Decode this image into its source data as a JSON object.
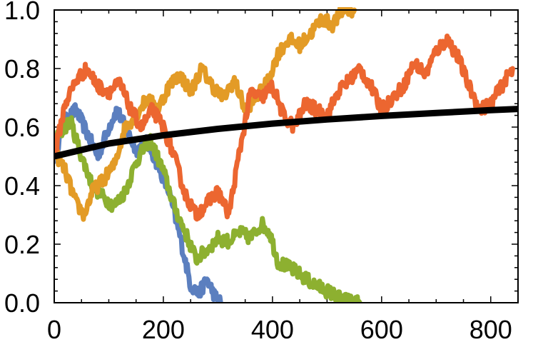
{
  "chart_data": {
    "type": "line",
    "title": "",
    "xlabel": "",
    "ylabel": "",
    "xlim": [
      0,
      850
    ],
    "ylim": [
      0,
      1.0
    ],
    "grid": false,
    "legend": "none",
    "x_ticks": [
      {
        "value": 0,
        "label": "0"
      },
      {
        "value": 200,
        "label": "200"
      },
      {
        "value": 400,
        "label": "400"
      },
      {
        "value": 600,
        "label": "600"
      },
      {
        "value": 800,
        "label": "800"
      }
    ],
    "y_ticks": [
      {
        "value": 0.0,
        "label": "0.0"
      },
      {
        "value": 0.2,
        "label": "0.2"
      },
      {
        "value": 0.4,
        "label": "0.4"
      },
      {
        "value": 0.6,
        "label": "0.6"
      },
      {
        "value": 0.8,
        "label": "0.8"
      },
      {
        "value": 1.0,
        "label": "1.0"
      }
    ],
    "series": [
      {
        "color": "#5b7fbf",
        "style": "noisy",
        "points": [
          [
            0,
            0.5
          ],
          [
            20,
            0.62
          ],
          [
            40,
            0.66
          ],
          [
            60,
            0.58
          ],
          [
            80,
            0.5
          ],
          [
            100,
            0.6
          ],
          [
            115,
            0.66
          ],
          [
            130,
            0.6
          ],
          [
            150,
            0.52
          ],
          [
            170,
            0.55
          ],
          [
            190,
            0.47
          ],
          [
            210,
            0.38
          ],
          [
            230,
            0.23
          ],
          [
            250,
            0.06
          ],
          [
            265,
            0.03
          ],
          [
            280,
            0.08
          ],
          [
            295,
            0.02
          ],
          [
            305,
            0.0
          ]
        ]
      },
      {
        "color": "#8db030",
        "style": "noisy",
        "points": [
          [
            0,
            0.55
          ],
          [
            20,
            0.6
          ],
          [
            30,
            0.62
          ],
          [
            50,
            0.5
          ],
          [
            70,
            0.4
          ],
          [
            90,
            0.36
          ],
          [
            110,
            0.33
          ],
          [
            130,
            0.38
          ],
          [
            150,
            0.48
          ],
          [
            175,
            0.56
          ],
          [
            200,
            0.45
          ],
          [
            220,
            0.33
          ],
          [
            240,
            0.24
          ],
          [
            260,
            0.15
          ],
          [
            280,
            0.18
          ],
          [
            300,
            0.22
          ],
          [
            320,
            0.21
          ],
          [
            340,
            0.24
          ],
          [
            360,
            0.22
          ],
          [
            380,
            0.27
          ],
          [
            395,
            0.24
          ],
          [
            410,
            0.14
          ],
          [
            440,
            0.11
          ],
          [
            470,
            0.07
          ],
          [
            500,
            0.04
          ],
          [
            530,
            0.01
          ],
          [
            560,
            0.0
          ]
        ]
      },
      {
        "color": "#e39b26",
        "style": "noisy",
        "points": [
          [
            0,
            0.52
          ],
          [
            20,
            0.45
          ],
          [
            40,
            0.34
          ],
          [
            55,
            0.3
          ],
          [
            70,
            0.38
          ],
          [
            90,
            0.42
          ],
          [
            110,
            0.47
          ],
          [
            130,
            0.6
          ],
          [
            150,
            0.64
          ],
          [
            170,
            0.7
          ],
          [
            190,
            0.66
          ],
          [
            210,
            0.74
          ],
          [
            230,
            0.78
          ],
          [
            250,
            0.72
          ],
          [
            270,
            0.8
          ],
          [
            290,
            0.74
          ],
          [
            310,
            0.7
          ],
          [
            330,
            0.76
          ],
          [
            350,
            0.66
          ],
          [
            370,
            0.7
          ],
          [
            390,
            0.75
          ],
          [
            410,
            0.85
          ],
          [
            430,
            0.9
          ],
          [
            450,
            0.88
          ],
          [
            470,
            0.92
          ],
          [
            490,
            0.97
          ],
          [
            510,
            0.95
          ],
          [
            530,
            1.0
          ],
          [
            550,
            1.0
          ]
        ]
      },
      {
        "color": "#ec6630",
        "style": "noisy",
        "points": [
          [
            0,
            0.5
          ],
          [
            20,
            0.68
          ],
          [
            40,
            0.76
          ],
          [
            60,
            0.8
          ],
          [
            80,
            0.74
          ],
          [
            100,
            0.72
          ],
          [
            120,
            0.75
          ],
          [
            140,
            0.66
          ],
          [
            160,
            0.6
          ],
          [
            180,
            0.66
          ],
          [
            200,
            0.6
          ],
          [
            220,
            0.5
          ],
          [
            240,
            0.37
          ],
          [
            260,
            0.3
          ],
          [
            280,
            0.34
          ],
          [
            300,
            0.38
          ],
          [
            320,
            0.3
          ],
          [
            340,
            0.52
          ],
          [
            360,
            0.72
          ],
          [
            380,
            0.7
          ],
          [
            400,
            0.74
          ],
          [
            420,
            0.64
          ],
          [
            440,
            0.6
          ],
          [
            460,
            0.68
          ],
          [
            480,
            0.66
          ],
          [
            500,
            0.64
          ],
          [
            520,
            0.72
          ],
          [
            540,
            0.76
          ],
          [
            560,
            0.8
          ],
          [
            580,
            0.74
          ],
          [
            600,
            0.66
          ],
          [
            620,
            0.7
          ],
          [
            640,
            0.74
          ],
          [
            660,
            0.82
          ],
          [
            680,
            0.78
          ],
          [
            700,
            0.86
          ],
          [
            720,
            0.9
          ],
          [
            740,
            0.84
          ],
          [
            760,
            0.74
          ],
          [
            780,
            0.66
          ],
          [
            800,
            0.68
          ],
          [
            820,
            0.74
          ],
          [
            840,
            0.8
          ]
        ]
      },
      {
        "color": "#000000",
        "style": "smooth",
        "points": [
          [
            0,
            0.5
          ],
          [
            100,
            0.544
          ],
          [
            200,
            0.572
          ],
          [
            300,
            0.594
          ],
          [
            400,
            0.612
          ],
          [
            500,
            0.626
          ],
          [
            600,
            0.638
          ],
          [
            700,
            0.648
          ],
          [
            800,
            0.658
          ],
          [
            850,
            0.662
          ]
        ]
      }
    ]
  }
}
